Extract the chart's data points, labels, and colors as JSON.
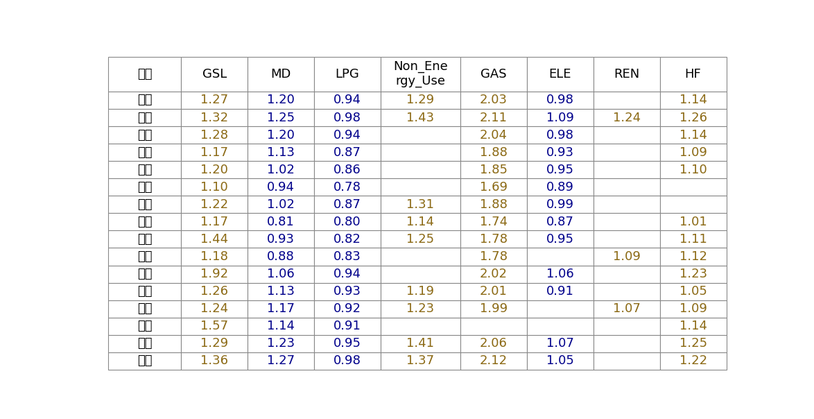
{
  "columns": [
    "지역",
    "GSL",
    "MD",
    "LPG",
    "Non_Ene\nrgy_Use",
    "GAS",
    "ELE",
    "REN",
    "HF"
  ],
  "rows": [
    [
      "강원",
      "1.27",
      "1.20",
      "0.94",
      "1.29",
      "2.03",
      "0.98",
      "",
      "1.14"
    ],
    [
      "경기",
      "1.32",
      "1.25",
      "0.98",
      "1.43",
      "2.11",
      "1.09",
      "1.24",
      "1.26"
    ],
    [
      "경남",
      "1.28",
      "1.20",
      "0.94",
      "",
      "2.04",
      "0.98",
      "",
      "1.14"
    ],
    [
      "경북",
      "1.17",
      "1.13",
      "0.87",
      "",
      "1.88",
      "0.93",
      "",
      "1.09"
    ],
    [
      "광주",
      "1.20",
      "1.02",
      "0.86",
      "",
      "1.85",
      "0.95",
      "",
      "1.10"
    ],
    [
      "대구",
      "1.10",
      "0.94",
      "0.78",
      "",
      "1.69",
      "0.89",
      "",
      ""
    ],
    [
      "대전",
      "1.22",
      "1.02",
      "0.87",
      "1.31",
      "1.88",
      "0.99",
      "",
      ""
    ],
    [
      "부산",
      "1.17",
      "0.81",
      "0.80",
      "1.14",
      "1.74",
      "0.87",
      "",
      "1.01"
    ],
    [
      "서울",
      "1.44",
      "0.93",
      "0.82",
      "1.25",
      "1.78",
      "0.95",
      "",
      "1.11"
    ],
    [
      "울산",
      "1.18",
      "0.88",
      "0.83",
      "",
      "1.78",
      "",
      "1.09",
      "1.12"
    ],
    [
      "인접",
      "1.92",
      "1.06",
      "0.94",
      "",
      "2.02",
      "1.06",
      "",
      "1.23"
    ],
    [
      "전남",
      "1.26",
      "1.13",
      "0.93",
      "1.19",
      "2.01",
      "0.91",
      "",
      "1.05"
    ],
    [
      "전북",
      "1.24",
      "1.17",
      "0.92",
      "1.23",
      "1.99",
      "",
      "1.07",
      "1.09"
    ],
    [
      "제주",
      "1.57",
      "1.14",
      "0.91",
      "",
      "",
      "",
      "",
      "1.14"
    ],
    [
      "충남",
      "1.29",
      "1.23",
      "0.95",
      "1.41",
      "2.06",
      "1.07",
      "",
      "1.25"
    ],
    [
      "충북",
      "1.36",
      "1.27",
      "0.98",
      "1.37",
      "2.12",
      "1.05",
      "",
      "1.22"
    ]
  ],
  "col_colors": [
    "black",
    "#8B6914",
    "#00008B",
    "#00008B",
    "#8B6914",
    "#8B6914",
    "#00008B",
    "#8B6914",
    "#8B6914"
  ],
  "border_color": "#888888",
  "bg_color": "#ffffff",
  "font_size": 13,
  "header_font_size": 13,
  "col_widths": [
    1.1,
    1.0,
    1.0,
    1.0,
    1.2,
    1.0,
    1.0,
    1.0,
    1.0
  ]
}
